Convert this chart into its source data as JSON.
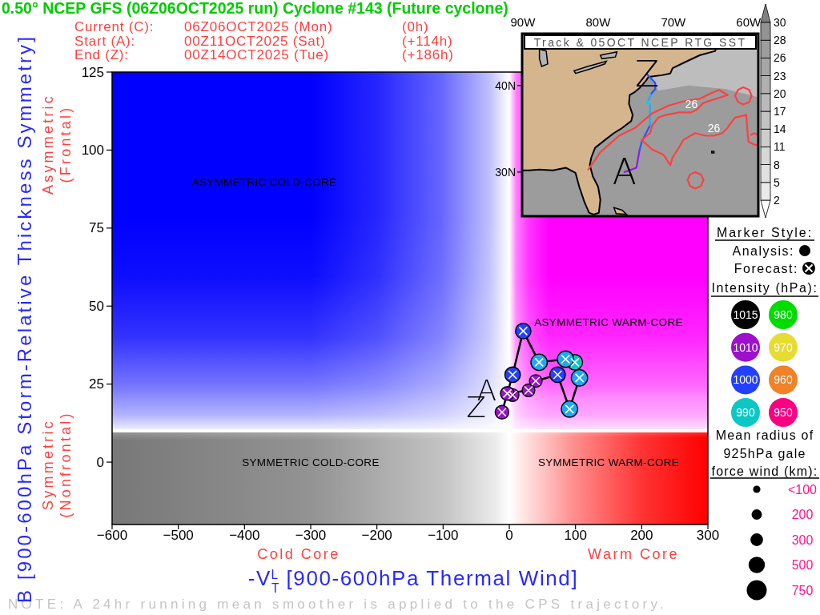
{
  "chart_data": [
    {
      "type": "bubble",
      "title": "0.50° NCEP GFS (06Z06OCT2025 run) Cyclone #143 (Future cyclone)",
      "subtitle": "Current (C): 06Z06OCT2025 (Mon) (0h)\nStart (A): 00Z11OCT2025 (Sat) (+114h)\nEnd (Z): 00Z14OCT2025 (Tue) (+186h)",
      "xlabel": "-V$_{T}$$^{L}$ [900-600hPa Thermal Wind]",
      "ylabel": "B [900-600hPa Storm-Relative Thickness Symmetry]",
      "xlim": [
        -600,
        300
      ],
      "ylim": [
        -20,
        125
      ],
      "xticks": [
        -600,
        -500,
        -400,
        -300,
        -200,
        -100,
        0,
        100,
        200,
        300
      ],
      "yticks": [
        0,
        25,
        50,
        75,
        100,
        125
      ],
      "series": [
        {
          "type": "line",
          "marker": "cross",
          "color": "#000000",
          "x": [
            5,
            -3,
            29,
            40,
            73,
            91,
            106,
            99,
            85,
            45,
            21,
            5,
            -11
          ],
          "values": [
            21.5,
            22,
            23,
            26,
            28,
            17,
            27,
            32,
            33,
            32,
            42,
            28,
            16
          ]
        },
        {
          "type": "bubble",
          "name": "1015"
        },
        {
          "type": "bubble",
          "name": "980"
        },
        {
          "type": "bubble",
          "name": "1010",
          "color": "#9c10cc",
          "x": [
            5,
            -3,
            29,
            40,
            -11
          ],
          "values": [
            21.5,
            22,
            23,
            26,
            16
          ],
          "sizes": [
            300,
            350,
            300,
            300,
            350
          ]
        },
        {
          "type": "bubble",
          "name": "970"
        },
        {
          "type": "bubble",
          "name": "1000",
          "color": "#2440ff",
          "x": [
            73,
            21,
            5
          ],
          "values": [
            28,
            42,
            28
          ],
          "sizes": [
            450,
            450,
            450
          ]
        },
        {
          "type": "bubble",
          "name": "960"
        },
        {
          "type": "bubble",
          "name": "990",
          "color": "#0cc8c4",
          "x": [
            91,
            106,
            99,
            85,
            45
          ],
          "values": [
            17,
            27,
            32,
            33,
            32
          ],
          "sizes": [
            500,
            500,
            450,
            500,
            500
          ],
          "colors": [
            "#1eaaf0",
            "#1eaaf0",
            "#0cc8c4",
            "#1eaaf0",
            "#1eaaf0"
          ]
        },
        {
          "type": "bubble",
          "name": "950"
        }
      ],
      "legend": "right",
      "legend_title": "Intensity (hPa):",
      "size_legend": [
        {
          "value": 100,
          "label": "<100"
        },
        200,
        300,
        500,
        750
      ],
      "ref_lines": [
        {
          "axis": "x",
          "value": 0,
          "color": "#ffffff"
        },
        {
          "axis": "y",
          "value": 10,
          "color": "#ffffff"
        }
      ],
      "annotations": [
        "ASYMMETRIC COLD-CORE",
        "ASYMMETRIC WARM-CORE",
        "SYMMETRIC COLD-CORE",
        "SYMMETRIC WARM-CORE",
        "Asymmetric\n(Frontal)",
        "Symmetric\n(Nonfrontal)",
        "Cold Core",
        "Warm Core",
        "NOTE:  A 24hr running mean smoother is applied to the CPS trajectory.",
        "Mean radius of\n925hPa gale\nforce wind (km):",
        {
          "text": "A",
          "x": 5,
          "y": 21.5
        },
        {
          "text": "Z",
          "x": -11,
          "y": 16
        }
      ]
    },
    {
      "type": "line",
      "title": "Track & 05OCT NCEP RTG SST",
      "xlim": [
        -90.1,
        -58.7
      ],
      "ylim": [
        24.9,
        46
      ],
      "xticks": [
        {
          "value": -90,
          "label": "90W"
        },
        {
          "value": -80,
          "label": "80W"
        },
        {
          "value": -70,
          "label": "70W"
        },
        {
          "value": -60,
          "label": "60W"
        }
      ],
      "yticks": [
        {
          "value": 30,
          "label": "30N"
        },
        {
          "value": 40,
          "label": "40N"
        }
      ],
      "series": [
        {
          "color": "#8c1ee6",
          "x": [
            -76.5,
            -74.9,
            -74.5
          ],
          "values": [
            30.0,
            30.5,
            32.5
          ]
        },
        {
          "color": "#3050ff",
          "x": [
            -74.5,
            -74.2,
            -73.1
          ],
          "values": [
            32.5,
            33.5,
            35.4
          ]
        },
        {
          "color": "#1eaaff",
          "x": [
            -73.1,
            -73.1
          ],
          "values": [
            35.4,
            37.9
          ]
        },
        {
          "color": "#00d2e6",
          "x": [
            -73.1,
            -73.5,
            -73.3
          ],
          "values": [
            37.9,
            38.0,
            38.3
          ]
        },
        {
          "color": "#1eaaff",
          "x": [
            -73.3,
            -72.9
          ],
          "values": [
            38.3,
            39.1
          ]
        },
        {
          "color": "#2850ff",
          "x": [
            -72.9,
            -72.4,
            -72.4,
            -73.5
          ],
          "values": [
            39.1,
            39.6,
            40.3,
            41.3
          ]
        },
        {
          "color": "#ff4040",
          "x": [
            -81.3,
            -79.7,
            -77.2,
            -75.1,
            -72.8,
            -70.6,
            -68.5,
            -66.4,
            -65.0,
            -63.9,
            -62.8
          ],
          "values": [
            30.3,
            32.3,
            34.2,
            35.1,
            36.8,
            37.7,
            38.2,
            38.5,
            39.1,
            39.5,
            38.9
          ]
        },
        {
          "color": "#ff4040",
          "x": [
            -62.8,
            -64.2,
            -66.0,
            -66.9,
            -67.6,
            -69.2,
            -71.0,
            -72.0,
            -72.8,
            -73.1,
            -74.2
          ],
          "values": [
            38.9,
            38.5,
            38.0,
            37.2,
            36.9,
            36.9,
            36.6,
            36.3,
            35.4,
            34.5,
            33.7
          ]
        },
        {
          "color": "#ff4040",
          "x": [
            -74.2,
            -72.8,
            -71.3,
            -70.4,
            -70.1,
            -69.2,
            -68.7,
            -67.1,
            -65.7,
            -64.6,
            -63.5,
            -62.8,
            -62.5,
            -61.8,
            -60.3,
            -60.2,
            -60.1,
            -60.0,
            -59.3,
            -58.7
          ],
          "values": [
            33.7,
            32.6,
            32.0,
            30.8,
            31.7,
            32.9,
            33.7,
            34.5,
            34.2,
            34.2,
            34.5,
            35.1,
            35.5,
            36.3,
            36.6,
            35.4,
            34.2,
            33.5,
            33.2,
            33.1
          ]
        },
        {
          "color": "#ff4040",
          "x": [
            -61.8,
            -61.4,
            -60.7,
            -59.9,
            -59.6
          ],
          "values": [
            38.8,
            39.5,
            39.8,
            39.5,
            38.8
          ]
        },
        {
          "color": "#ff4040",
          "x": [
            -61.8,
            -61.4,
            -60.7,
            -59.9,
            -59.6
          ],
          "values": [
            38.8,
            38.1,
            37.8,
            38.1,
            38.8
          ]
        },
        {
          "color": "#ff4040",
          "x": [
            -68.1,
            -67.8,
            -67.1,
            -66.3,
            -66.0
          ],
          "values": [
            29.1,
            29.7,
            30.0,
            29.7,
            29.1
          ]
        },
        {
          "color": "#ff4040",
          "x": [
            -68.1,
            -67.8,
            -67.1,
            -66.3,
            -66.0
          ],
          "values": [
            29.1,
            28.4,
            28.1,
            28.4,
            29.1
          ]
        },
        {
          "color": "#ff4040",
          "x": [
            -59.7,
            -59.2,
            -58.8
          ],
          "values": [
            34.3,
            34.5,
            34.3
          ]
        }
      ],
      "cticks": [
        2,
        5,
        8,
        11,
        14,
        17,
        20,
        23,
        26,
        28,
        30
      ],
      "annotations": [
        {
          "text": "A",
          "x": -76.5,
          "y": 30.0
        },
        {
          "text": "Z",
          "x": -73.5,
          "y": 41.3
        },
        {
          "text": "26",
          "x": -67.6,
          "y": 36.9
        },
        {
          "text": "26",
          "x": -64.6,
          "y": 34.2
        }
      ]
    },
    {
      "type": "other",
      "title": "Marker Style:",
      "annotations": [
        "Analysis:",
        "Forecast:"
      ]
    }
  ]
}
